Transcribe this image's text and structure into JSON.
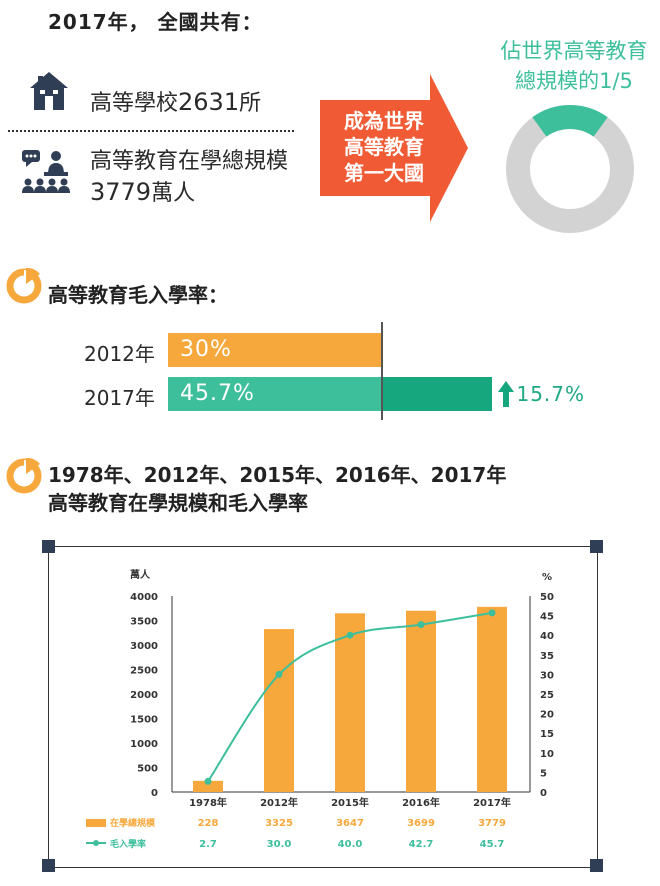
{
  "header": {
    "title": "2017年， 全國共有："
  },
  "stats": {
    "schools": {
      "label": "高等學校",
      "number": "2631",
      "unit": "所"
    },
    "enrollment": {
      "line1": "高等教育在學總規模",
      "number": "3779",
      "unit": "萬人"
    }
  },
  "arrow": {
    "lines": [
      "成為世界",
      "高等教育",
      "第一大國"
    ]
  },
  "donut": {
    "lines": [
      "佔世界高等教育",
      "總規模的1/5"
    ],
    "fraction": 0.2,
    "colors": {
      "share": "#3dbf9c",
      "rest": "#d3d3d3"
    }
  },
  "gross": {
    "title": "高等教育毛入學率：",
    "rows": [
      {
        "year": "2012年",
        "value_label": "30%",
        "value": 30
      },
      {
        "year": "2017年",
        "value_label": "45.7%",
        "value": 45.7
      }
    ],
    "increase": "15.7%"
  },
  "section2": {
    "line1": "1978年、2012年、2015年、2016年、2017年",
    "line2": "高等教育在學規模和毛入學率"
  },
  "colors": {
    "orange": "#f7a83c",
    "teal": "#3dbf9c",
    "dark_teal": "#16a77e",
    "red": "#f05a34",
    "navy": "#2f3d55"
  },
  "chart_data": {
    "type": "bar",
    "categories": [
      "1978年",
      "2012年",
      "2015年",
      "2016年",
      "2017年"
    ],
    "series": [
      {
        "name": "在學總規模",
        "type": "bar",
        "axis": "left",
        "values": [
          228,
          3325,
          3647,
          3699,
          3779
        ],
        "labels": [
          "228",
          "3325",
          "3647",
          "3699",
          "3779"
        ]
      },
      {
        "name": "毛入學率",
        "type": "line",
        "axis": "right",
        "values": [
          2.7,
          30.0,
          40.0,
          42.7,
          45.7
        ],
        "labels": [
          "2.7",
          "30.0",
          "40.0",
          "42.7",
          "45.7"
        ]
      }
    ],
    "ylabel": "萬人",
    "y2label": "%",
    "ylim": [
      0,
      4000
    ],
    "y2lim": [
      0,
      50
    ],
    "yticks": [
      "0",
      "500",
      "1000",
      "1500",
      "2000",
      "2500",
      "3000",
      "3500",
      "4000"
    ],
    "y2ticks": [
      "0",
      "5",
      "10",
      "15",
      "20",
      "25",
      "30",
      "35",
      "40",
      "45",
      "50"
    ],
    "legend_position": "bottom-left"
  }
}
